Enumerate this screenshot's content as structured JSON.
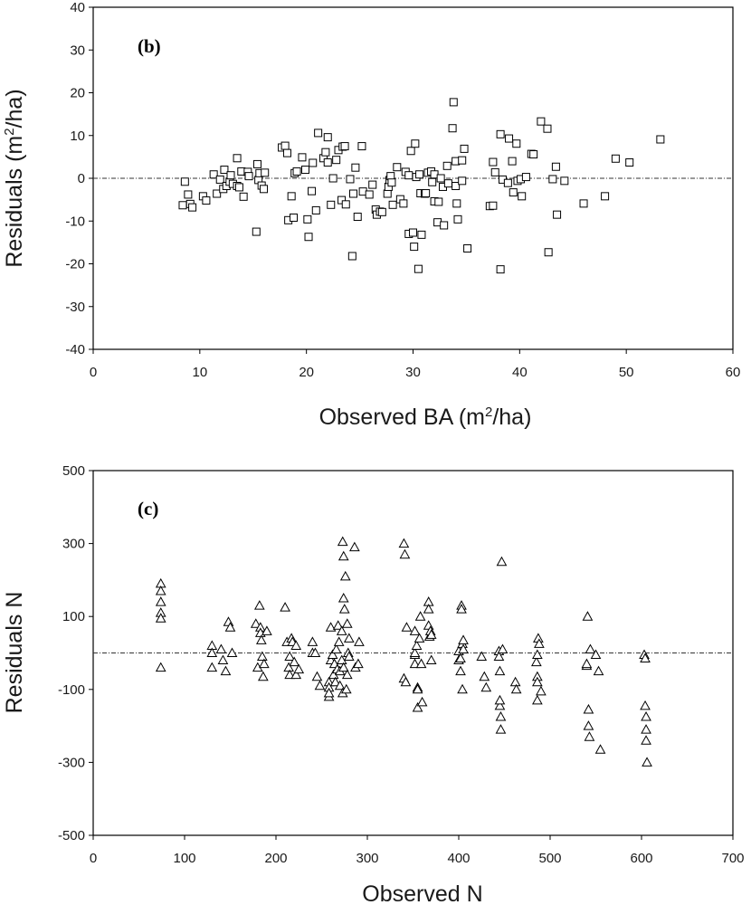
{
  "chart_data": [
    {
      "type": "scatter",
      "panel_label": "(b)",
      "xlabel": "Observed BA (m",
      "xlabel_sup": "2",
      "xlabel_end": "/ha)",
      "ylabel": "Residuals (m",
      "ylabel_sup": "2",
      "ylabel_end": "/ha)",
      "xlim": [
        0,
        60
      ],
      "ylim": [
        -40,
        40
      ],
      "xticks": [
        "0",
        "10",
        "20",
        "30",
        "40",
        "50",
        "60"
      ],
      "yticks": [
        "40",
        "30",
        "20",
        "10",
        "0",
        "-10",
        "-20",
        "-30",
        "-40"
      ],
      "marker": "square",
      "reference_line": 0,
      "points": [
        [
          8.4,
          -6.3
        ],
        [
          8.6,
          -0.8
        ],
        [
          8.9,
          -3.8
        ],
        [
          9.1,
          -6
        ],
        [
          9.3,
          -6.8
        ],
        [
          10.3,
          -4.2
        ],
        [
          10.6,
          -5.2
        ],
        [
          11.3,
          0.9
        ],
        [
          11.6,
          -3.6
        ],
        [
          11.9,
          -0.3
        ],
        [
          12.2,
          -2.5
        ],
        [
          12.3,
          2
        ],
        [
          12.5,
          -1.8
        ],
        [
          12.8,
          -0.8
        ],
        [
          12.9,
          0.7
        ],
        [
          13.1,
          -1.3
        ],
        [
          13.5,
          -1.8
        ],
        [
          13.5,
          4.7
        ],
        [
          13.7,
          -2.1
        ],
        [
          13.9,
          1.6
        ],
        [
          14.1,
          -4.3
        ],
        [
          14.5,
          1.5
        ],
        [
          14.6,
          0.5
        ],
        [
          15.3,
          -12.5
        ],
        [
          15.4,
          3.3
        ],
        [
          15.5,
          -0.4
        ],
        [
          15.6,
          1.2
        ],
        [
          15.8,
          -1.7
        ],
        [
          16,
          -2.5
        ],
        [
          16.1,
          1.3
        ],
        [
          17.7,
          7.2
        ],
        [
          18,
          7.6
        ],
        [
          18.2,
          5.9
        ],
        [
          18.3,
          -9.8
        ],
        [
          18.6,
          -4.2
        ],
        [
          18.8,
          -9.2
        ],
        [
          18.9,
          1.2
        ],
        [
          19.1,
          1.6
        ],
        [
          19.6,
          4.9
        ],
        [
          19.9,
          2
        ],
        [
          20.1,
          -9.6
        ],
        [
          20.2,
          -13.7
        ],
        [
          20.5,
          -3
        ],
        [
          20.6,
          3.6
        ],
        [
          20.9,
          -7.5
        ],
        [
          21.1,
          10.6
        ],
        [
          21.6,
          4.7
        ],
        [
          21.8,
          6.1
        ],
        [
          22,
          9.6
        ],
        [
          22,
          3.7
        ],
        [
          22.3,
          -6.2
        ],
        [
          22.5,
          0
        ],
        [
          22.8,
          4.3
        ],
        [
          23,
          6.6
        ],
        [
          23.3,
          -5.1
        ],
        [
          23.4,
          7.4
        ],
        [
          23.6,
          7.5
        ],
        [
          23.7,
          -6.1
        ],
        [
          24.1,
          -0.2
        ],
        [
          24.3,
          -18.2
        ],
        [
          24.4,
          -3.6
        ],
        [
          24.6,
          2.5
        ],
        [
          24.8,
          -9
        ],
        [
          25.2,
          7.5
        ],
        [
          25.3,
          -3.1
        ],
        [
          25.9,
          -3.8
        ],
        [
          26.2,
          -1.5
        ],
        [
          26.5,
          -7.3
        ],
        [
          26.6,
          -8.5
        ],
        [
          26.9,
          -7.8
        ],
        [
          27.1,
          -7.9
        ],
        [
          27.6,
          -3.6
        ],
        [
          27.7,
          -2
        ],
        [
          27.8,
          -0.4
        ],
        [
          27.9,
          0.5
        ],
        [
          28,
          -1
        ],
        [
          28.1,
          -6.2
        ],
        [
          28.5,
          2.6
        ],
        [
          28.8,
          -4.9
        ],
        [
          29.1,
          -5.9
        ],
        [
          29.3,
          1.5
        ],
        [
          29.6,
          0.7
        ],
        [
          29.6,
          -13
        ],
        [
          29.8,
          6.4
        ],
        [
          30,
          -12.7
        ],
        [
          30.1,
          -16
        ],
        [
          30.2,
          8.1
        ],
        [
          30.3,
          0.3
        ],
        [
          30.5,
          -21.2
        ],
        [
          30.6,
          0.9
        ],
        [
          30.7,
          -3.5
        ],
        [
          30.8,
          -13.2
        ],
        [
          31.1,
          -3.6
        ],
        [
          31.2,
          -3.5
        ],
        [
          31.4,
          1.3
        ],
        [
          31.7,
          1.6
        ],
        [
          31.8,
          -0.9
        ],
        [
          32,
          -5.4
        ],
        [
          32,
          0.9
        ],
        [
          32.3,
          -10.3
        ],
        [
          32.4,
          -5.5
        ],
        [
          32.6,
          0
        ],
        [
          32.8,
          -2
        ],
        [
          32.9,
          -11
        ],
        [
          33.2,
          2.9
        ],
        [
          33.3,
          -1.2
        ],
        [
          33.7,
          11.7
        ],
        [
          33.8,
          17.8
        ],
        [
          34,
          -1.8
        ],
        [
          34,
          4
        ],
        [
          34.1,
          -5.9
        ],
        [
          34.2,
          -9.6
        ],
        [
          34.6,
          4.2
        ],
        [
          34.6,
          -0.6
        ],
        [
          34.8,
          6.9
        ],
        [
          35.1,
          -16.4
        ],
        [
          37.2,
          -6.5
        ],
        [
          37.5,
          3.8
        ],
        [
          37.5,
          -6.4
        ],
        [
          37.7,
          1.4
        ],
        [
          38.2,
          10.3
        ],
        [
          38.2,
          -21.3
        ],
        [
          38.4,
          -0.3
        ],
        [
          38.9,
          -1.1
        ],
        [
          39,
          9.3
        ],
        [
          39.3,
          4
        ],
        [
          39.4,
          -3.3
        ],
        [
          39.7,
          8.1
        ],
        [
          39.8,
          -0.6
        ],
        [
          40.1,
          -0.2
        ],
        [
          40.2,
          -4.2
        ],
        [
          40.6,
          0.3
        ],
        [
          41.1,
          5.7
        ],
        [
          41.3,
          5.6
        ],
        [
          42,
          13.3
        ],
        [
          42.6,
          11.6
        ],
        [
          42.7,
          -17.3
        ],
        [
          43.1,
          -0.2
        ],
        [
          43.4,
          2.7
        ],
        [
          43.5,
          -8.5
        ],
        [
          44.2,
          -0.6
        ],
        [
          46,
          -5.9
        ],
        [
          48,
          -4.2
        ],
        [
          49,
          4.6
        ],
        [
          50.3,
          3.7
        ],
        [
          53.2,
          9.1
        ]
      ]
    },
    {
      "type": "scatter",
      "panel_label": "(c)",
      "xlabel": "Observed N",
      "ylabel": "Residuals N",
      "xlim": [
        0,
        700
      ],
      "ylim": [
        -500,
        500
      ],
      "xticks": [
        "0",
        "100",
        "200",
        "300",
        "400",
        "500",
        "600",
        "700"
      ],
      "yticks": [
        "500",
        "300",
        "100",
        "-100",
        "-300",
        "-500"
      ],
      "marker": "triangle",
      "reference_line": 0,
      "points": [
        [
          74,
          190
        ],
        [
          74,
          170
        ],
        [
          74,
          140
        ],
        [
          74,
          110
        ],
        [
          74,
          95
        ],
        [
          74,
          -40
        ],
        [
          130,
          20
        ],
        [
          130,
          0
        ],
        [
          130,
          -40
        ],
        [
          140,
          10
        ],
        [
          142,
          -20
        ],
        [
          145,
          -50
        ],
        [
          148,
          85
        ],
        [
          150,
          70
        ],
        [
          152,
          0
        ],
        [
          178,
          80
        ],
        [
          180,
          -40
        ],
        [
          182,
          130
        ],
        [
          183,
          70
        ],
        [
          183,
          55
        ],
        [
          184,
          35
        ],
        [
          185,
          -10
        ],
        [
          186,
          -65
        ],
        [
          187,
          -30
        ],
        [
          190,
          60
        ],
        [
          210,
          125
        ],
        [
          212,
          30
        ],
        [
          214,
          -40
        ],
        [
          215,
          -60
        ],
        [
          215,
          -10
        ],
        [
          217,
          40
        ],
        [
          218,
          30
        ],
        [
          220,
          -25
        ],
        [
          222,
          20
        ],
        [
          222,
          -60
        ],
        [
          225,
          -45
        ],
        [
          240,
          30
        ],
        [
          240,
          0
        ],
        [
          243,
          0
        ],
        [
          245,
          -65
        ],
        [
          248,
          -90
        ],
        [
          258,
          -120
        ],
        [
          258,
          -80
        ],
        [
          258,
          -95
        ],
        [
          258,
          -110
        ],
        [
          260,
          70
        ],
        [
          260,
          -20
        ],
        [
          262,
          -5
        ],
        [
          263,
          -60
        ],
        [
          264,
          -30
        ],
        [
          265,
          -80
        ],
        [
          266,
          10
        ],
        [
          267,
          -45
        ],
        [
          268,
          75
        ],
        [
          269,
          30
        ],
        [
          270,
          -50
        ],
        [
          270,
          -90
        ],
        [
          272,
          -20
        ],
        [
          272,
          60
        ],
        [
          273,
          -110
        ],
        [
          273,
          305
        ],
        [
          274,
          -40
        ],
        [
          274,
          150
        ],
        [
          274,
          265
        ],
        [
          275,
          120
        ],
        [
          276,
          210
        ],
        [
          277,
          -100
        ],
        [
          278,
          -60
        ],
        [
          278,
          80
        ],
        [
          279,
          0
        ],
        [
          280,
          -10
        ],
        [
          280,
          40
        ],
        [
          286,
          290
        ],
        [
          287,
          -40
        ],
        [
          290,
          -30
        ],
        [
          291,
          30
        ],
        [
          340,
          -70
        ],
        [
          340,
          300
        ],
        [
          341,
          270
        ],
        [
          342,
          -80
        ],
        [
          343,
          70
        ],
        [
          352,
          60
        ],
        [
          352,
          -5
        ],
        [
          352,
          0
        ],
        [
          352,
          -30
        ],
        [
          354,
          20
        ],
        [
          355,
          -95
        ],
        [
          355,
          -100
        ],
        [
          355,
          -150
        ],
        [
          357,
          40
        ],
        [
          358,
          100
        ],
        [
          359,
          -30
        ],
        [
          360,
          -135
        ],
        [
          367,
          75
        ],
        [
          367,
          140
        ],
        [
          367,
          120
        ],
        [
          368,
          45
        ],
        [
          369,
          60
        ],
        [
          370,
          -20
        ],
        [
          370,
          50
        ],
        [
          400,
          5
        ],
        [
          400,
          -20
        ],
        [
          402,
          -15
        ],
        [
          402,
          -50
        ],
        [
          403,
          130
        ],
        [
          403,
          120
        ],
        [
          404,
          25
        ],
        [
          404,
          -100
        ],
        [
          405,
          35
        ],
        [
          405,
          10
        ],
        [
          425,
          -10
        ],
        [
          428,
          -65
        ],
        [
          430,
          -95
        ],
        [
          444,
          5
        ],
        [
          444,
          -10
        ],
        [
          445,
          -50
        ],
        [
          445,
          -145
        ],
        [
          445,
          -130
        ],
        [
          446,
          -175
        ],
        [
          446,
          -210
        ],
        [
          447,
          250
        ],
        [
          448,
          10
        ],
        [
          462,
          -80
        ],
        [
          463,
          -100
        ],
        [
          485,
          -25
        ],
        [
          486,
          -5
        ],
        [
          486,
          -65
        ],
        [
          486,
          -130
        ],
        [
          486,
          -80
        ],
        [
          487,
          40
        ],
        [
          488,
          25
        ],
        [
          490,
          -105
        ],
        [
          540,
          -35
        ],
        [
          540,
          -30
        ],
        [
          541,
          100
        ],
        [
          542,
          -155
        ],
        [
          542,
          -200
        ],
        [
          543,
          -230
        ],
        [
          544,
          10
        ],
        [
          550,
          -5
        ],
        [
          553,
          -50
        ],
        [
          555,
          -265
        ],
        [
          603,
          -5
        ],
        [
          604,
          -15
        ],
        [
          604,
          -145
        ],
        [
          605,
          -175
        ],
        [
          605,
          -210
        ],
        [
          605,
          -240
        ],
        [
          606,
          -300
        ]
      ]
    }
  ]
}
